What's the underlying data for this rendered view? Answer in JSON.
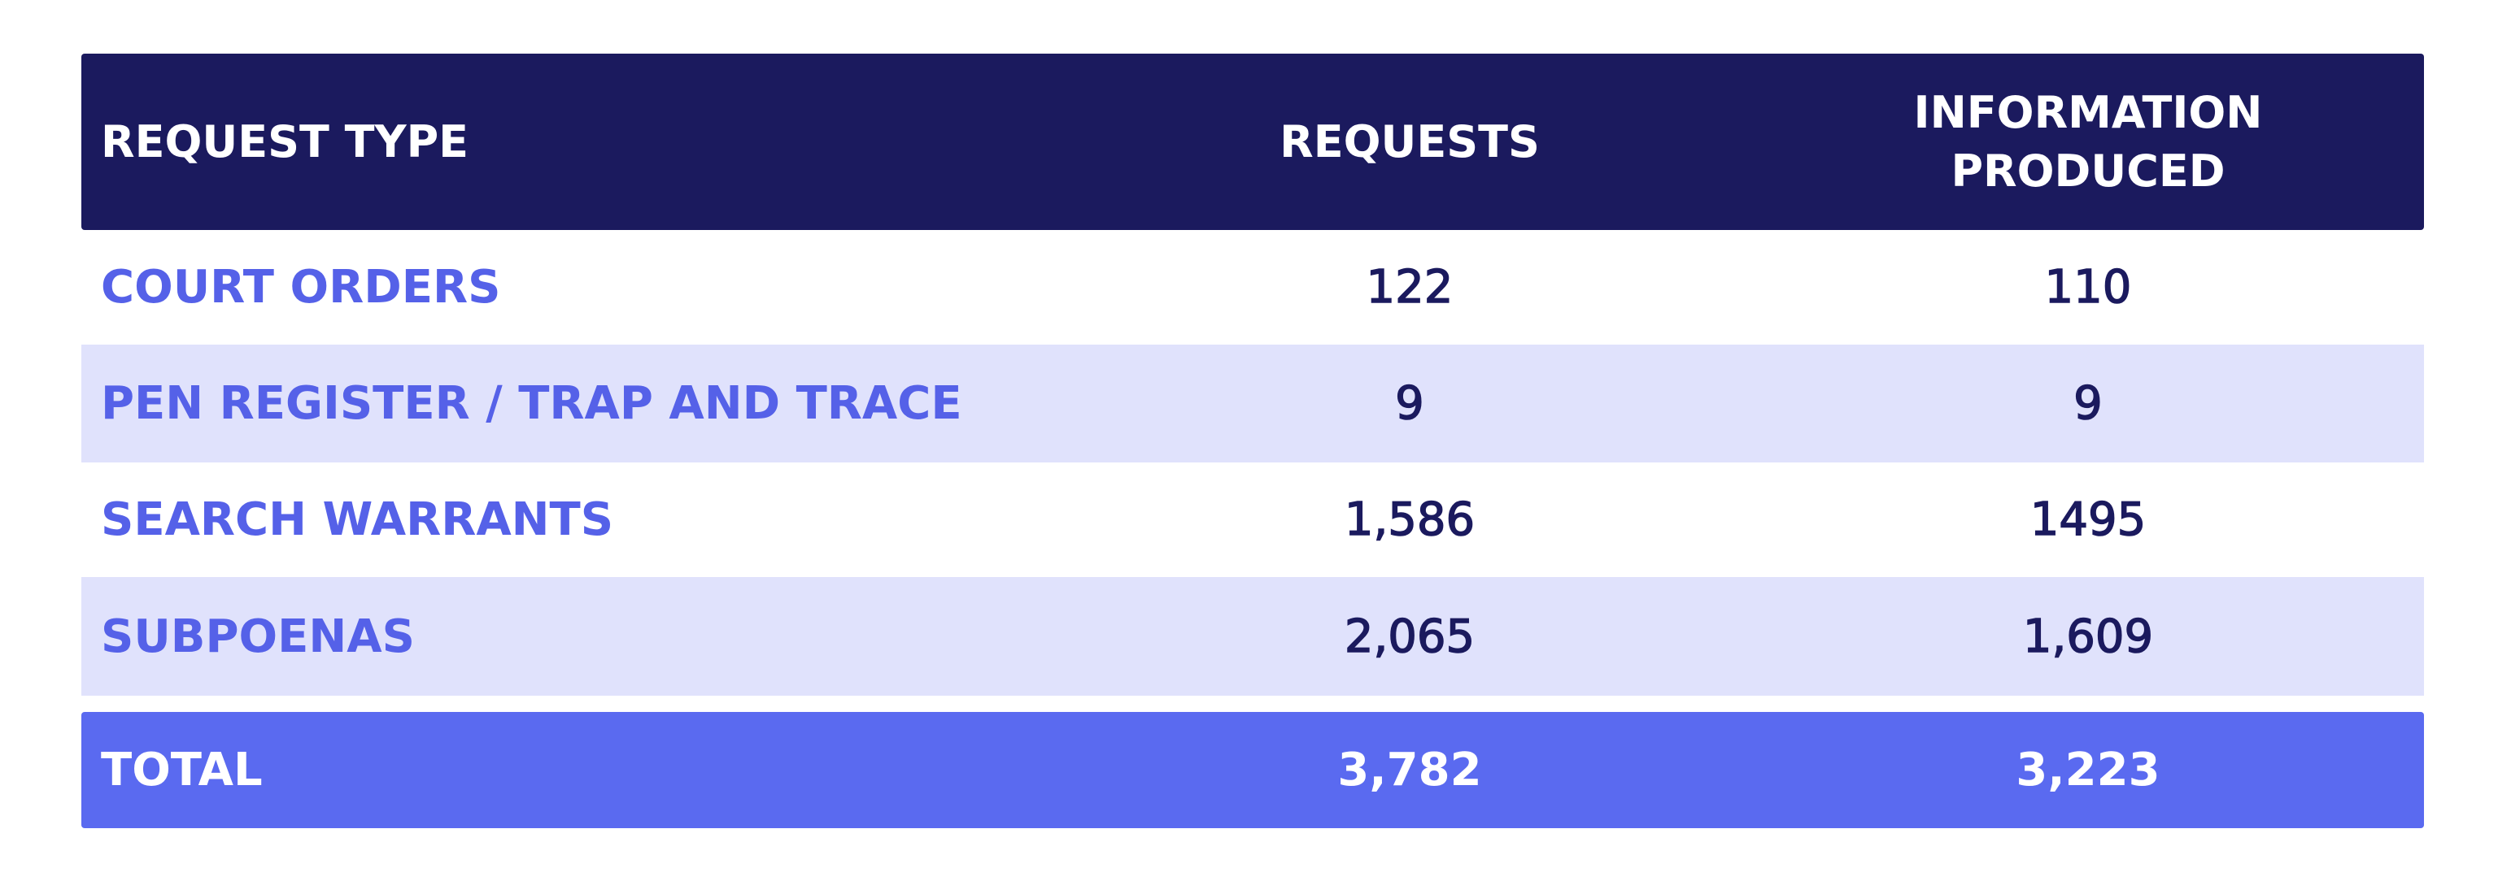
{
  "table": {
    "header": [
      "REQUEST TYPE",
      "REQUESTS",
      "INFORMATION PRODUCED"
    ],
    "rows": [
      [
        "COURT ORDERS",
        "122",
        "110"
      ],
      [
        "PEN REGISTER / TRAP AND TRACE",
        "9",
        "9"
      ],
      [
        "SEARCH WARRANTS",
        "1,586",
        "1495"
      ],
      [
        "SUBPOENAS",
        "2,065",
        "1,609"
      ]
    ],
    "total": [
      "TOTAL",
      "3,782",
      "3,223"
    ]
  }
}
